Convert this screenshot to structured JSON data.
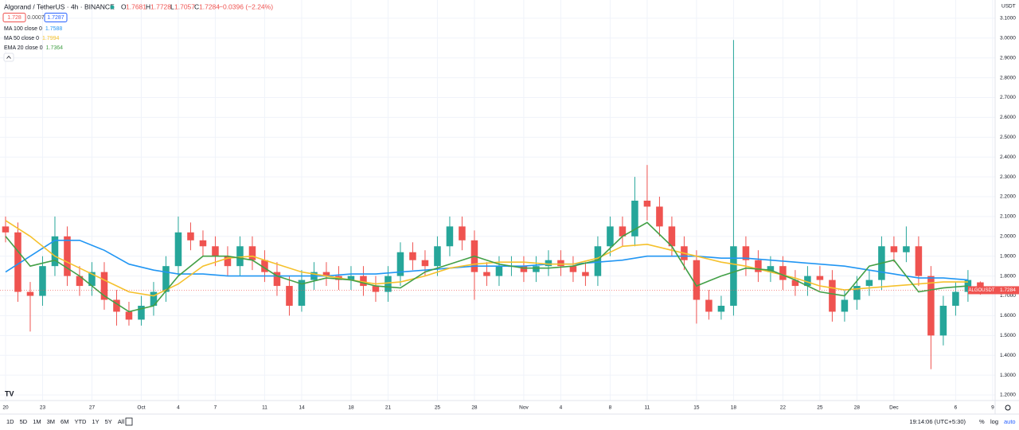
{
  "header": {
    "title": "Algorand / TetherUS · 4h · BINANCE",
    "o_label": "O",
    "open": 1.7681,
    "h_label": "H",
    "high": 1.7728,
    "l_label": "L",
    "low": 1.7057,
    "c_label": "C",
    "close": 1.7284,
    "change": "−0.0396 (−2.24%)",
    "sell": 1.728,
    "spread": 0.0007,
    "buy": 1.7287
  },
  "chart_data": {
    "type": "candlestick",
    "up_color": "#26a69a",
    "down_color": "#ef5350",
    "x": [
      0,
      1,
      2,
      3,
      4,
      5,
      6,
      7,
      8,
      9,
      10,
      11,
      12,
      13,
      14,
      15,
      16,
      17,
      18,
      19,
      20,
      21,
      22,
      23,
      24,
      25,
      26,
      27,
      28,
      29,
      30,
      31,
      32,
      33,
      34,
      35,
      36,
      37,
      38,
      39,
      40,
      41,
      42,
      43,
      44,
      45,
      46,
      47,
      48,
      49,
      50,
      51,
      52,
      53,
      54,
      55,
      56,
      57,
      58,
      59,
      60,
      61,
      62,
      63,
      64,
      65,
      66,
      67,
      68,
      69,
      70,
      71,
      72,
      73,
      74,
      75,
      76,
      77,
      78,
      79
    ],
    "open": [
      2.05,
      2.02,
      1.72,
      1.7,
      1.85,
      2.0,
      1.8,
      1.75,
      1.82,
      1.68,
      1.62,
      1.58,
      1.65,
      1.72,
      1.85,
      2.02,
      1.98,
      1.95,
      1.9,
      1.85,
      1.95,
      1.88,
      1.82,
      1.75,
      1.65,
      1.78,
      1.82,
      1.8,
      1.78,
      1.8,
      1.75,
      1.72,
      1.8,
      1.92,
      1.88,
      1.85,
      1.95,
      2.05,
      1.98,
      1.82,
      1.8,
      1.85,
      1.85,
      1.82,
      1.85,
      1.88,
      1.85,
      1.82,
      1.8,
      1.95,
      2.05,
      2.0,
      2.18,
      2.15,
      2.05,
      1.95,
      1.88,
      1.68,
      1.62,
      1.65,
      1.95,
      1.88,
      1.82,
      1.85,
      1.78,
      1.75,
      1.8,
      1.78,
      1.62,
      1.68,
      1.75,
      1.78,
      1.95,
      1.92,
      1.95,
      1.8,
      1.5,
      1.65,
      1.72,
      1.7681
    ],
    "high": [
      2.1,
      2.07,
      1.77,
      1.9,
      2.1,
      2.05,
      1.85,
      1.87,
      1.87,
      1.73,
      1.67,
      1.7,
      1.77,
      1.9,
      2.1,
      2.07,
      2.03,
      2.0,
      1.95,
      2.0,
      2.0,
      1.93,
      1.87,
      1.8,
      1.83,
      1.87,
      1.87,
      1.85,
      1.85,
      1.85,
      1.8,
      1.85,
      1.97,
      1.97,
      1.93,
      2.0,
      2.1,
      2.1,
      2.03,
      1.87,
      1.9,
      1.9,
      1.9,
      1.9,
      1.93,
      1.93,
      1.9,
      1.87,
      2.0,
      2.1,
      2.1,
      2.3,
      2.36,
      2.2,
      2.1,
      2.0,
      1.93,
      1.73,
      1.7,
      2.99,
      2.0,
      1.93,
      1.9,
      1.9,
      1.83,
      1.85,
      1.85,
      1.83,
      1.73,
      1.8,
      1.83,
      2.0,
      2.0,
      2.05,
      2.0,
      1.85,
      1.7,
      1.77,
      1.83,
      1.7728
    ],
    "low": [
      1.97,
      1.67,
      1.52,
      1.65,
      1.8,
      1.75,
      1.7,
      1.7,
      1.63,
      1.55,
      1.55,
      1.55,
      1.6,
      1.67,
      1.8,
      1.93,
      1.9,
      1.85,
      1.8,
      1.8,
      1.83,
      1.77,
      1.7,
      1.6,
      1.62,
      1.73,
      1.75,
      1.73,
      1.73,
      1.7,
      1.67,
      1.67,
      1.75,
      1.83,
      1.8,
      1.8,
      1.9,
      1.93,
      1.68,
      1.75,
      1.75,
      1.8,
      1.77,
      1.77,
      1.8,
      1.8,
      1.77,
      1.75,
      1.75,
      1.9,
      1.95,
      1.95,
      2.08,
      2.0,
      1.9,
      1.83,
      1.56,
      1.58,
      1.58,
      1.6,
      1.8,
      1.77,
      1.77,
      1.73,
      1.7,
      1.7,
      1.73,
      1.57,
      1.57,
      1.63,
      1.7,
      1.73,
      1.87,
      1.87,
      1.75,
      1.33,
      1.45,
      1.6,
      1.67,
      1.7057
    ],
    "close": [
      2.02,
      1.72,
      1.7,
      1.85,
      2.0,
      1.8,
      1.75,
      1.82,
      1.68,
      1.62,
      1.58,
      1.65,
      1.72,
      1.85,
      2.02,
      1.98,
      1.95,
      1.9,
      1.85,
      1.95,
      1.88,
      1.82,
      1.75,
      1.65,
      1.78,
      1.82,
      1.8,
      1.78,
      1.8,
      1.75,
      1.72,
      1.8,
      1.92,
      1.88,
      1.85,
      1.95,
      2.05,
      1.98,
      1.82,
      1.8,
      1.85,
      1.85,
      1.82,
      1.85,
      1.88,
      1.85,
      1.82,
      1.8,
      1.95,
      2.05,
      2.0,
      2.18,
      2.15,
      2.05,
      1.95,
      1.88,
      1.68,
      1.62,
      1.65,
      1.95,
      1.88,
      1.82,
      1.85,
      1.78,
      1.75,
      1.8,
      1.78,
      1.62,
      1.68,
      1.75,
      1.78,
      1.95,
      1.92,
      1.95,
      1.8,
      1.5,
      1.65,
      1.72,
      1.78,
      1.7284
    ],
    "series": [
      {
        "name": "MA 100 close 0",
        "last": 1.7588,
        "color": "#2196f3",
        "x": [
          0,
          2,
          4,
          6,
          8,
          10,
          12,
          14,
          16,
          18,
          20,
          22,
          24,
          26,
          28,
          30,
          32,
          34,
          36,
          38,
          40,
          42,
          44,
          46,
          48,
          50,
          52,
          54,
          56,
          58,
          60,
          62,
          64,
          66,
          68,
          70,
          72,
          74,
          76,
          78
        ],
        "values": [
          1.82,
          1.9,
          1.98,
          1.98,
          1.93,
          1.86,
          1.83,
          1.81,
          1.81,
          1.8,
          1.8,
          1.8,
          1.8,
          1.8,
          1.81,
          1.81,
          1.82,
          1.83,
          1.84,
          1.85,
          1.85,
          1.85,
          1.86,
          1.86,
          1.87,
          1.88,
          1.9,
          1.9,
          1.9,
          1.89,
          1.89,
          1.88,
          1.87,
          1.86,
          1.85,
          1.83,
          1.81,
          1.79,
          1.79,
          1.78
        ]
      },
      {
        "name": "MA 50 close 0",
        "last": 1.7994,
        "color": "#f5c12c",
        "x": [
          0,
          2,
          4,
          6,
          8,
          10,
          12,
          14,
          16,
          18,
          20,
          22,
          24,
          26,
          28,
          30,
          32,
          34,
          36,
          38,
          40,
          42,
          44,
          46,
          48,
          50,
          52,
          54,
          56,
          58,
          60,
          62,
          64,
          66,
          68,
          70,
          72,
          74,
          76,
          78
        ],
        "values": [
          2.08,
          2.0,
          1.9,
          1.84,
          1.78,
          1.72,
          1.7,
          1.76,
          1.85,
          1.89,
          1.9,
          1.86,
          1.82,
          1.8,
          1.78,
          1.76,
          1.77,
          1.8,
          1.84,
          1.86,
          1.87,
          1.87,
          1.86,
          1.86,
          1.89,
          1.95,
          1.96,
          1.93,
          1.9,
          1.87,
          1.85,
          1.82,
          1.79,
          1.75,
          1.73,
          1.74,
          1.75,
          1.76,
          1.77,
          1.77
        ]
      },
      {
        "name": "EMA 20 close 0",
        "last": 1.7364,
        "color": "#43a047",
        "x": [
          0,
          2,
          4,
          6,
          8,
          10,
          12,
          14,
          16,
          18,
          20,
          22,
          24,
          26,
          28,
          30,
          32,
          34,
          36,
          38,
          40,
          42,
          44,
          46,
          48,
          50,
          52,
          54,
          56,
          58,
          60,
          62,
          64,
          66,
          68,
          70,
          72,
          74,
          76,
          78
        ],
        "values": [
          2.0,
          1.85,
          1.88,
          1.8,
          1.7,
          1.62,
          1.65,
          1.8,
          1.9,
          1.9,
          1.88,
          1.8,
          1.76,
          1.79,
          1.78,
          1.75,
          1.74,
          1.82,
          1.86,
          1.9,
          1.86,
          1.84,
          1.84,
          1.85,
          1.88,
          2.0,
          2.07,
          1.95,
          1.75,
          1.8,
          1.84,
          1.83,
          1.78,
          1.72,
          1.7,
          1.85,
          1.88,
          1.72,
          1.74,
          1.75
        ]
      }
    ],
    "symbol": "ALGOUSDT",
    "current_price": 1.7284,
    "y_unit": "USDT",
    "xlim": [
      -0.45,
      80.2
    ],
    "ylim": [
      1.172,
      3.192
    ],
    "xticks": [
      {
        "value": 0,
        "label": "20"
      },
      {
        "value": 3,
        "label": "23"
      },
      {
        "value": 7,
        "label": "27"
      },
      {
        "value": 11,
        "label": "Oct"
      },
      {
        "value": 14,
        "label": "4"
      },
      {
        "value": 17,
        "label": "7"
      },
      {
        "value": 21,
        "label": "11"
      },
      {
        "value": 24,
        "label": "14"
      },
      {
        "value": 28,
        "label": "18"
      },
      {
        "value": 31,
        "label": "21"
      },
      {
        "value": 35,
        "label": "25"
      },
      {
        "value": 38,
        "label": "28"
      },
      {
        "value": 42,
        "label": "Nov"
      },
      {
        "value": 45,
        "label": "4"
      },
      {
        "value": 49,
        "label": "8"
      },
      {
        "value": 52,
        "label": "11"
      },
      {
        "value": 56,
        "label": "15"
      },
      {
        "value": 59,
        "label": "18"
      },
      {
        "value": 63,
        "label": "22"
      },
      {
        "value": 66,
        "label": "25"
      },
      {
        "value": 69,
        "label": "28"
      },
      {
        "value": 72,
        "label": "Dec"
      },
      {
        "value": 77,
        "label": "6"
      },
      {
        "value": 80,
        "label": "9"
      }
    ],
    "yticks": [
      {
        "value": 1.2,
        "label": "1.2000"
      },
      {
        "value": 1.3,
        "label": "1.3000"
      },
      {
        "value": 1.4,
        "label": "1.4000"
      },
      {
        "value": 1.5,
        "label": "1.5000"
      },
      {
        "value": 1.6,
        "label": "1.6000"
      },
      {
        "value": 1.7,
        "label": "1.7000"
      },
      {
        "value": 1.8,
        "label": "1.8000"
      },
      {
        "value": 1.9,
        "label": "1.9000"
      },
      {
        "value": 2.0,
        "label": "2.0000"
      },
      {
        "value": 2.1,
        "label": "2.1000"
      },
      {
        "value": 2.2,
        "label": "2.2000"
      },
      {
        "value": 2.3,
        "label": "2.3000"
      },
      {
        "value": 2.4,
        "label": "2.4000"
      },
      {
        "value": 2.5,
        "label": "2.5000"
      },
      {
        "value": 2.6,
        "label": "2.6000"
      },
      {
        "value": 2.7,
        "label": "2.7000"
      },
      {
        "value": 2.8,
        "label": "2.8000"
      },
      {
        "value": 2.9,
        "label": "2.9000"
      },
      {
        "value": 3.0,
        "label": "3.0000"
      },
      {
        "value": 3.1,
        "label": "3.1000"
      }
    ],
    "grid": true
  },
  "toolbar": {
    "ranges": [
      "1D",
      "5D",
      "1M",
      "3M",
      "6M",
      "YTD",
      "1Y",
      "5Y",
      "All"
    ],
    "time": "19:14:06 (UTC+5:30)",
    "percent": "%",
    "log": "log",
    "auto": "auto"
  }
}
